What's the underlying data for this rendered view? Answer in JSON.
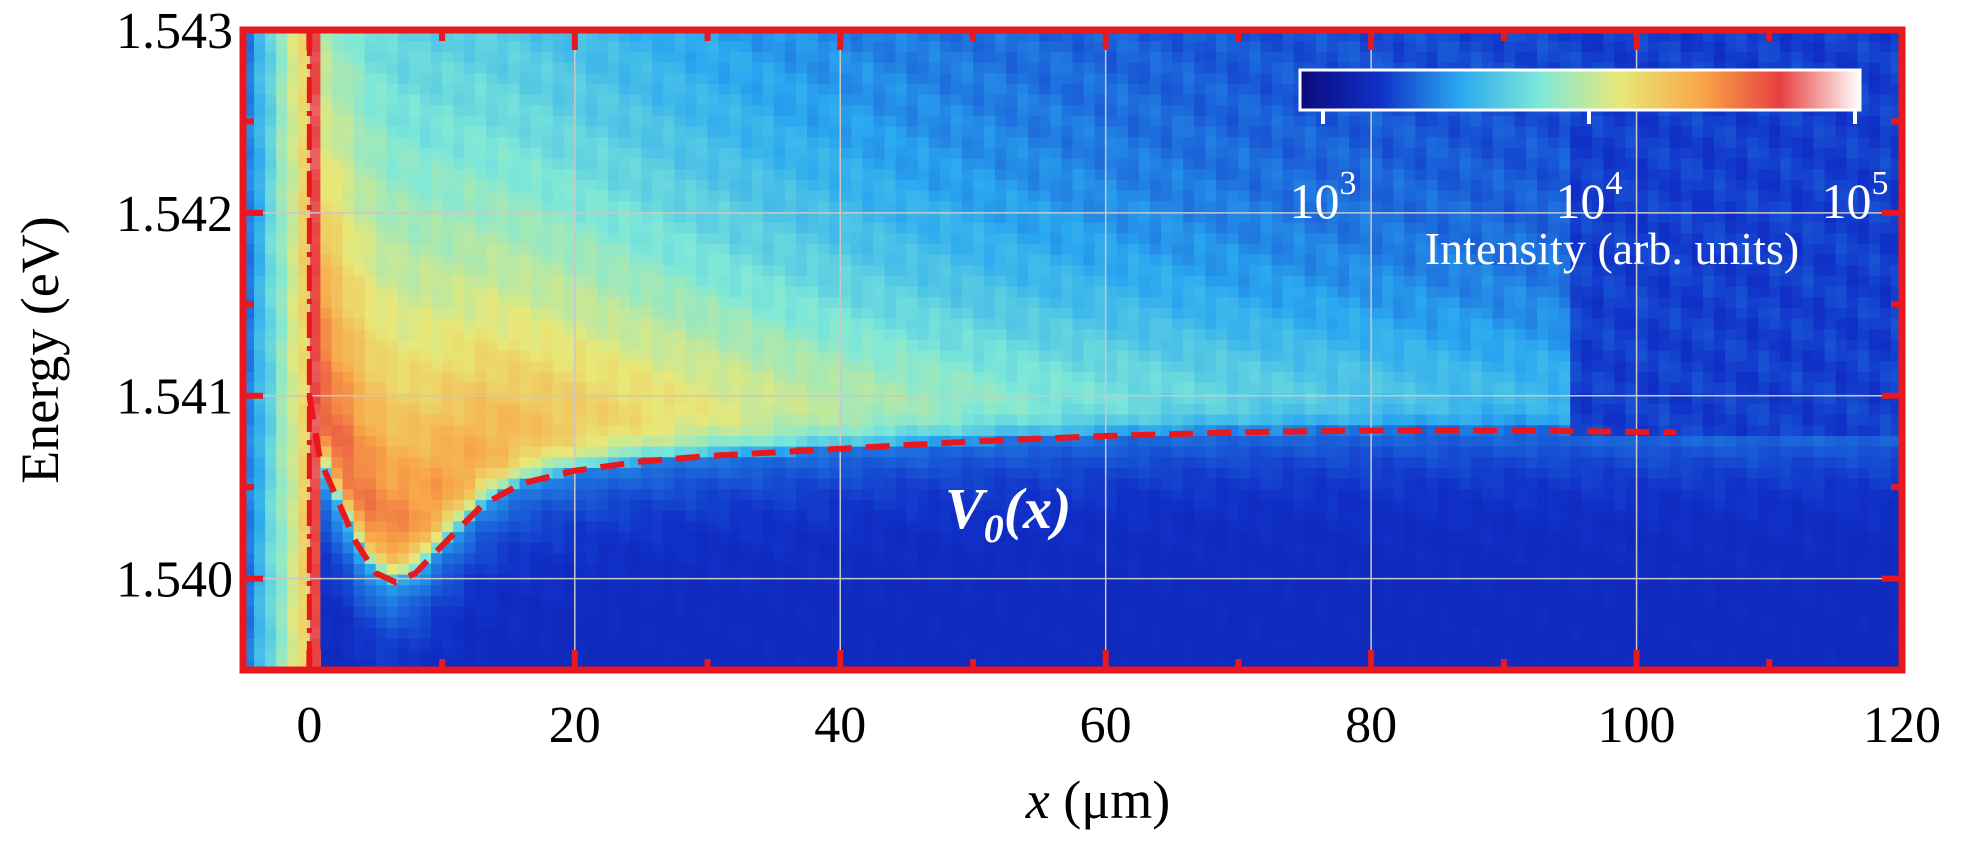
{
  "chart_data": {
    "type": "heatmap",
    "title": "",
    "xlabel_var": "x",
    "xlabel_unit": " (μm)",
    "ylabel": "Energy (eV)",
    "xlim": [
      -5,
      120
    ],
    "ylim": [
      1.5395,
      1.543
    ],
    "x_ticks": [
      0,
      20,
      40,
      60,
      80,
      100,
      120
    ],
    "x_tick_labels": [
      "0",
      "20",
      "40",
      "60",
      "80",
      "100",
      "120"
    ],
    "y_ticks": [
      1.54,
      1.541,
      1.542,
      1.543
    ],
    "y_tick_labels": [
      "1.540",
      "1.541",
      "1.542",
      "1.543"
    ],
    "grid": true,
    "frame_color": "#e8181e",
    "colormap": [
      "#0a0a7a",
      "#1030c8",
      "#2aa8f0",
      "#7ee8d8",
      "#e8e878",
      "#f8a848",
      "#e84040",
      "#ffffff"
    ],
    "colorbar": {
      "scale": "log",
      "range": [
        1000,
        100000
      ],
      "tick_base": "10",
      "ticks": [
        {
          "exp": "3"
        },
        {
          "exp": "4"
        },
        {
          "exp": "5"
        }
      ],
      "label": "Intensity (arb. units)",
      "placement": "top-right"
    },
    "potential_curve": {
      "name": "V",
      "subscript": "0",
      "arg": "(x)",
      "style": "dashed",
      "color": "#e8181e",
      "x": [
        0,
        0.8,
        2,
        3.5,
        5,
        6.5,
        8,
        10,
        13,
        16,
        20,
        25,
        30,
        40,
        50,
        60,
        70,
        80,
        90,
        103
      ],
      "y": [
        1.541,
        1.54065,
        1.54045,
        1.5402,
        1.54003,
        1.53998,
        1.54003,
        1.54018,
        1.5404,
        1.54052,
        1.54059,
        1.54064,
        1.54067,
        1.54071,
        1.54075,
        1.54078,
        1.5408,
        1.54081,
        1.54081,
        1.5408
      ]
    },
    "source_line": {
      "x": 0,
      "style": "dash-dot",
      "color": "#e8181e"
    }
  }
}
